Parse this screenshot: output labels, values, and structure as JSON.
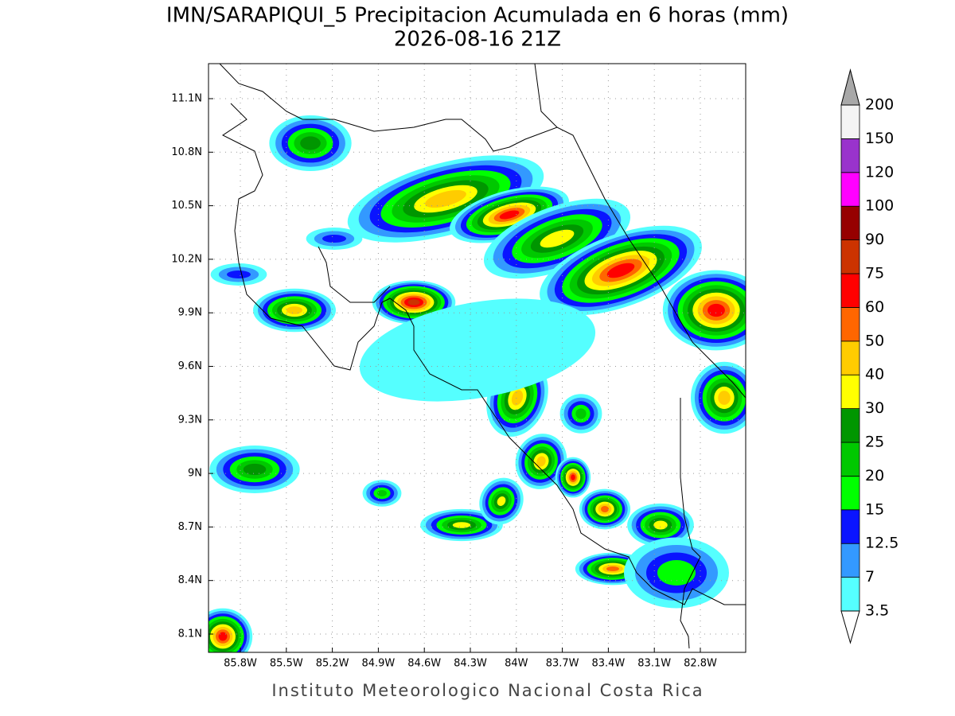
{
  "header": {
    "title": "IMN/SARAPIQUI_5 Precipitacion Acumulada en 6 horas (mm)",
    "subtitle": "2026-08-16 21Z"
  },
  "map": {
    "lat_labels": [
      "11.1N",
      "10.8N",
      "10.5N",
      "10.2N",
      "9.9N",
      "9.6N",
      "9.3N",
      "9N",
      "8.7N",
      "8.4N",
      "8.1N"
    ],
    "lon_labels": [
      "85.8W",
      "85.5W",
      "85.2W",
      "84.9W",
      "84.6W",
      "84.3W",
      "84W",
      "83.7W",
      "83.4W",
      "83.1W",
      "82.8W"
    ]
  },
  "colorbar": {
    "levels": [
      3.5,
      7,
      12.5,
      15,
      20,
      25,
      30,
      40,
      50,
      60,
      75,
      90,
      100,
      120,
      150,
      200
    ],
    "colors": [
      "#55ffff",
      "#3399ff",
      "#0a14ff",
      "#00ff00",
      "#00c800",
      "#009600",
      "#ffff00",
      "#ffcc00",
      "#ff6600",
      "#ff0000",
      "#cc3300",
      "#960000",
      "#ff00ff",
      "#9933cc",
      "#f4f4f4"
    ],
    "under_color": "#ffffff",
    "over_color": "#a8a8a8"
  },
  "footer": {
    "credit": "Instituto Meteorologico Nacional Costa Rica"
  }
}
